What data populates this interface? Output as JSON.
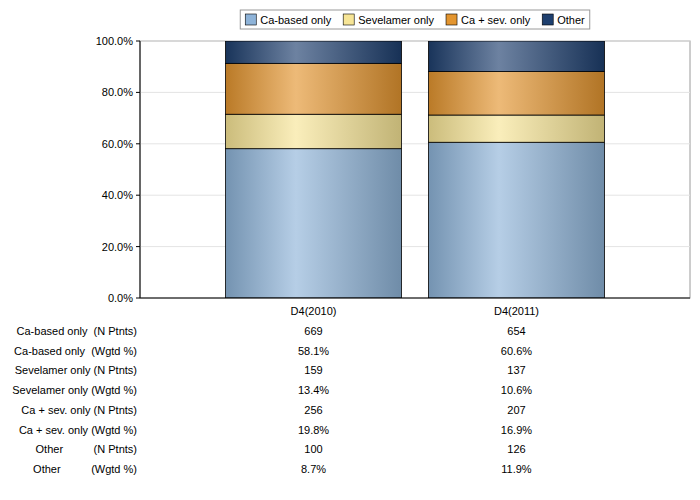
{
  "chart_data": {
    "type": "bar",
    "stacked": true,
    "grid": true,
    "legend": "top",
    "categories": [
      "D4(2010)",
      "D4(2011)"
    ],
    "ylim": [
      0,
      100
    ],
    "yticks": [
      {
        "value": 0,
        "label": "0.0%"
      },
      {
        "value": 20,
        "label": "20.0%"
      },
      {
        "value": 40,
        "label": "40.0%"
      },
      {
        "value": 60,
        "label": "60.0%"
      },
      {
        "value": 80,
        "label": "80.0%"
      },
      {
        "value": 100,
        "label": "100.0%"
      }
    ],
    "series": [
      {
        "name": "Ca-based only",
        "color": "#8eb3d8",
        "values": [
          58.1,
          60.6
        ],
        "value_labels": [
          "58.1%",
          "60.6%"
        ],
        "n_patients": [
          669,
          654
        ],
        "n_label": "Ca-based only  (N Ptnts)",
        "pct_label": "Ca-based only  (Wgtd %)"
      },
      {
        "name": "Sevelamer only",
        "color": "#f7e596",
        "values": [
          13.4,
          10.6
        ],
        "value_labels": [
          "13.4%",
          "10.6%"
        ],
        "n_patients": [
          159,
          137
        ],
        "n_label": "Sevelamer only (N Ptnts)",
        "pct_label": "Sevelamer only (Wgtd %)"
      },
      {
        "name": "Ca + sev. only",
        "color": "#e3952f",
        "values": [
          19.8,
          16.9
        ],
        "value_labels": [
          "19.8%",
          "16.9%"
        ],
        "n_patients": [
          256,
          207
        ],
        "n_label": "Ca + sev. only (N Ptnts)",
        "pct_label": "Ca + sev. only (Wgtd %)"
      },
      {
        "name": "Other",
        "color": "#1e3f6e",
        "values": [
          8.7,
          11.9
        ],
        "value_labels": [
          "8.7%",
          "11.9%"
        ],
        "n_patients": [
          100,
          126
        ],
        "n_label": "Other          (N Ptnts)",
        "pct_label": "Other          (Wgtd %)"
      }
    ]
  }
}
